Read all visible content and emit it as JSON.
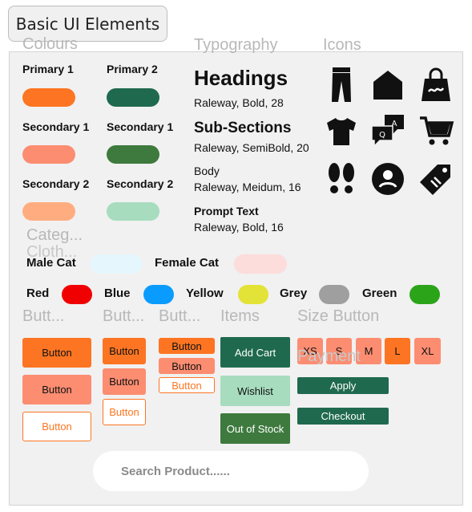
{
  "app_title": "Basic UI Elements",
  "sections": {
    "colours": "Colours",
    "typography": "Typography",
    "icons": "Icons",
    "categories": "Categ...",
    "clothing": "Cloth...",
    "buttons_1": "Butt...",
    "buttons_2": "Butt...",
    "buttons_3": "Butt...",
    "items": "Items",
    "size_button": "Size Button",
    "payment": "Payment"
  },
  "colours": {
    "primary_1": {
      "label": "Primary 1",
      "color": "#fd7522"
    },
    "primary_2": {
      "label": "Primary 2",
      "color": "#1f6a4f"
    },
    "secondary_1a": {
      "label": "Secondary 1",
      "color": "#fc8d71"
    },
    "secondary_1b": {
      "label": "Secondary 1",
      "color": "#3e7a3e"
    },
    "secondary_2a": {
      "label": "Secondary 2",
      "color": "#ffad80"
    },
    "secondary_2b": {
      "label": "Secondary 2",
      "color": "#a7dcbf"
    }
  },
  "typography": {
    "headings": "Headings",
    "headings_spec": "Raleway, Bold, 28",
    "subsections": "Sub-Sections",
    "subsections_spec": "Raleway, SemiBold, 20",
    "body": "Body",
    "body_spec": "Raleway, Meidum, 16",
    "prompt": "Prompt Text",
    "prompt_spec": "Raleway, Bold, 16"
  },
  "icons": [
    "trousers-icon",
    "home-icon",
    "shopping-bag-icon",
    "tshirt-icon",
    "qa-chat-icon",
    "cart-icon",
    "footprints-icon",
    "user-circle-icon",
    "price-tag-icon"
  ],
  "categories": {
    "male": {
      "label": "Male Cat",
      "color": "#e6f6fd"
    },
    "female": {
      "label": "Female Cat",
      "color": "#fddcdc"
    }
  },
  "color_chips": [
    {
      "label": "Red",
      "color": "#f00000"
    },
    {
      "label": "Blue",
      "color": "#0a9bff"
    },
    {
      "label": "Yellow",
      "color": "#e3e236"
    },
    {
      "label": "Grey",
      "color": "#9f9f9f"
    },
    {
      "label": "Green",
      "color": "#2ca41a"
    }
  ],
  "buttons": {
    "label": "Button"
  },
  "items": {
    "add_cart": "Add Cart",
    "wishlist": "Wishlist",
    "out_of_stock": "Out of Stock"
  },
  "sizes": [
    "XS",
    "S",
    "M",
    "L",
    "XL"
  ],
  "payment": {
    "apply": "Apply",
    "checkout": "Checkout"
  },
  "search": {
    "placeholder": "Search Product......"
  }
}
